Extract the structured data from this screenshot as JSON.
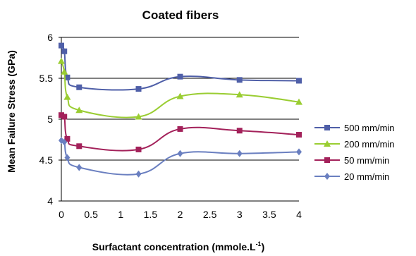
{
  "chart_data": {
    "type": "line",
    "title": "Coated fibers",
    "xlabel_main": "Surfactant concentration (mmole.L",
    "xlabel_sup": "-1",
    "xlabel_close": ")",
    "ylabel": "Mean Failure Stress (GPa)",
    "xlim": [
      0,
      4
    ],
    "ylim": [
      4,
      6
    ],
    "x_ticks": [
      0,
      0.5,
      1,
      1.5,
      2,
      2.5,
      3,
      3.5,
      4
    ],
    "x_tick_labels": [
      "0",
      "0.5",
      "1",
      "1.5",
      "2",
      "2.5",
      "3",
      "3.5",
      "4"
    ],
    "y_ticks": [
      4,
      4.5,
      5,
      5.5,
      6
    ],
    "y_tick_labels": [
      "4",
      "4.5",
      "5",
      "5.5",
      "6"
    ],
    "grid": "horizontal",
    "legend_position": "right",
    "series": [
      {
        "name": "500 mm/min",
        "color": "#4f5fa8",
        "marker": "square",
        "x": [
          0,
          0.05,
          0.1,
          0.3,
          1.3,
          2,
          3,
          4
        ],
        "y": [
          5.9,
          5.83,
          5.51,
          5.39,
          5.37,
          5.52,
          5.48,
          5.47
        ]
      },
      {
        "name": "200 mm/min",
        "color": "#9acd32",
        "marker": "triangle",
        "x": [
          0,
          0.05,
          0.1,
          0.3,
          1.3,
          2,
          3,
          4
        ],
        "y": [
          5.71,
          5.58,
          5.27,
          5.11,
          5.03,
          5.28,
          5.3,
          5.21
        ]
      },
      {
        "name": "50 mm/min",
        "color": "#a3215a",
        "marker": "square",
        "x": [
          0,
          0.05,
          0.1,
          0.3,
          1.3,
          2,
          3,
          4
        ],
        "y": [
          5.05,
          5.03,
          4.76,
          4.67,
          4.63,
          4.88,
          4.86,
          4.81
        ]
      },
      {
        "name": "20 mm/min",
        "color": "#6a7fc0",
        "marker": "diamond",
        "x": [
          0,
          0.05,
          0.1,
          0.3,
          1.3,
          2,
          3,
          4
        ],
        "y": [
          4.74,
          4.72,
          4.53,
          4.41,
          4.33,
          4.58,
          4.58,
          4.6
        ]
      }
    ]
  }
}
